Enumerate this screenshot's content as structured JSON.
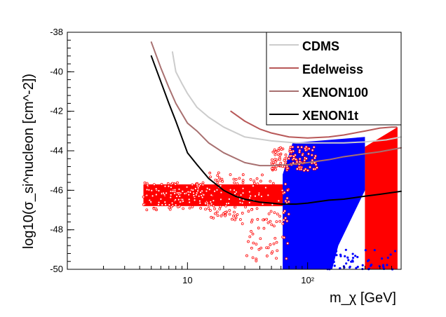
{
  "chart_data": {
    "type": "scatter",
    "title": "",
    "xlabel": "m_χ [GeV]",
    "ylabel": "log10(σ_si^nucleon [cm^-2])",
    "xscale": "log",
    "xlim": [
      1,
      600
    ],
    "ylim": [
      -50,
      -38
    ],
    "x_ticks": [
      10,
      100
    ],
    "x_tick_labels": [
      "10",
      "10²"
    ],
    "y_ticks": [
      -38,
      -40,
      -42,
      -44,
      -46,
      -48,
      -50
    ],
    "y_tick_labels": [
      "-38",
      "-40",
      "-42",
      "-44",
      "-46",
      "-48",
      "-50"
    ],
    "legend": {
      "placement": "top-right",
      "entries": [
        "CDMS",
        "Edelweiss",
        "XENON100",
        "XENON1t"
      ]
    },
    "lines": [
      {
        "name": "CDMS",
        "color": "#cccccc",
        "x": [
          7.5,
          8,
          9,
          10,
          12,
          15,
          20,
          30,
          50,
          80,
          120,
          200,
          300,
          450,
          600
        ],
        "y": [
          -39.0,
          -40.0,
          -40.6,
          -41.1,
          -41.8,
          -42.3,
          -42.8,
          -43.3,
          -43.5,
          -43.6,
          -43.6,
          -43.6,
          -43.55,
          -43.45,
          -43.3
        ]
      },
      {
        "name": "Edelweiss",
        "color": "#b85858",
        "x": [
          23,
          30,
          40,
          50,
          70,
          100,
          150,
          200,
          300,
          400,
          500,
          550
        ],
        "y": [
          -42.0,
          -42.5,
          -42.9,
          -43.1,
          -43.3,
          -43.35,
          -43.3,
          -43.2,
          -43.0,
          -42.85,
          -42.8,
          -42.8
        ]
      },
      {
        "name": "XENON100",
        "color": "#a87070",
        "x": [
          5,
          6,
          7,
          8,
          10,
          12,
          15,
          20,
          30,
          40,
          50,
          70,
          100,
          150,
          200,
          300,
          400,
          600
        ],
        "y": [
          -38.5,
          -39.8,
          -40.8,
          -41.6,
          -42.6,
          -43.0,
          -43.6,
          -44.1,
          -44.6,
          -44.75,
          -44.75,
          -44.7,
          -44.6,
          -44.45,
          -44.3,
          -44.15,
          -44.05,
          -43.85
        ]
      },
      {
        "name": "XENON1t",
        "color": "#000000",
        "x": [
          5,
          6,
          7,
          8,
          10,
          12,
          15,
          20,
          25,
          30,
          40,
          50,
          60,
          80,
          100,
          150,
          200,
          300,
          400,
          600
        ],
        "y": [
          -39.2,
          -40.5,
          -41.6,
          -42.5,
          -44.1,
          -44.7,
          -45.4,
          -46.0,
          -46.3,
          -46.45,
          -46.6,
          -46.65,
          -46.7,
          -46.7,
          -46.65,
          -46.5,
          -46.45,
          -46.3,
          -46.2,
          -46.05
        ]
      }
    ],
    "scatter_regions": [
      {
        "name": "red points",
        "color": "#ff0000",
        "description_values": {
          "main_band_x": [
            4.3,
            65
          ],
          "main_band_y": [
            -46.8,
            -45.7
          ],
          "right_region_x": [
            300,
            560
          ],
          "right_region_y": [
            -50,
            -42.8
          ]
        }
      },
      {
        "name": "blue points",
        "color": "#0000ff",
        "description_values": {
          "region_x": [
            62,
            300
          ],
          "region_y": [
            -50,
            -43.5
          ]
        }
      }
    ]
  }
}
